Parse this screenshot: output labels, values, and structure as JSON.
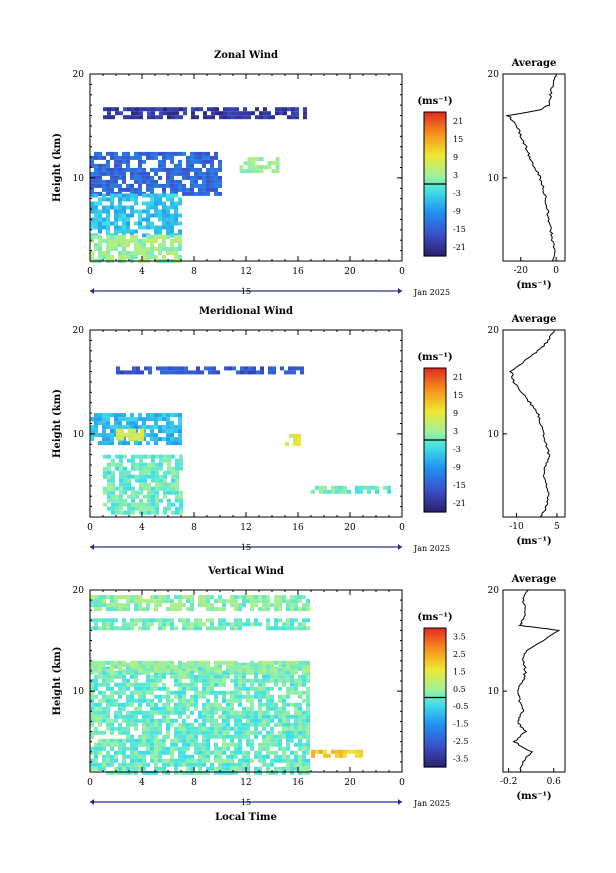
{
  "chart_data": [
    {
      "type": "heatmap",
      "title": "Zonal Wind",
      "ylabel": "Height (km)",
      "xticks": [
        "0",
        "4",
        "8",
        "12",
        "16",
        "20",
        "0"
      ],
      "yticks": [
        "20",
        "10"
      ],
      "date_label": "15",
      "month_label": "Jan 2025",
      "xlim": [
        0,
        24
      ],
      "ylim": [
        2,
        20
      ],
      "colorbar": {
        "unit": "(ms⁻¹)",
        "ticks": [
          "21",
          "15",
          "9",
          "3",
          "-3",
          "-9",
          "-15",
          "-21"
        ],
        "range": [
          -24,
          24
        ]
      },
      "regions": [
        {
          "t0": 1.0,
          "t1": 16.5,
          "h0": 16.0,
          "h1": 16.8,
          "value": -20
        },
        {
          "t0": 0.0,
          "t1": 10.0,
          "h0": 8.5,
          "h1": 12.5,
          "value": -14
        },
        {
          "t0": 0.0,
          "t1": 7.0,
          "h0": 4.5,
          "h1": 8.5,
          "value": -5
        },
        {
          "t0": 0.0,
          "t1": 7.0,
          "h0": 2.0,
          "h1": 4.5,
          "value": 3
        },
        {
          "t0": 11.5,
          "t1": 14.5,
          "h0": 10.5,
          "h1": 12.0,
          "value": 3
        }
      ],
      "profile": {
        "title": "Average",
        "xticks": [
          "-20",
          "0"
        ],
        "xlim": [
          -30,
          5
        ],
        "xlabel": "(ms⁻¹)",
        "yticks": [
          "20",
          "10"
        ],
        "points": [
          [
            -2,
            2
          ],
          [
            -1,
            3
          ],
          [
            -2,
            4
          ],
          [
            -3,
            5
          ],
          [
            -4,
            6
          ],
          [
            -5,
            7
          ],
          [
            -6,
            8
          ],
          [
            -7,
            9
          ],
          [
            -9,
            10
          ],
          [
            -12,
            11
          ],
          [
            -15,
            12
          ],
          [
            -17,
            13
          ],
          [
            -20,
            14
          ],
          [
            -22,
            15
          ],
          [
            -27,
            16
          ],
          [
            -10,
            16.5
          ],
          [
            -4,
            17
          ],
          [
            -3,
            18
          ],
          [
            -2,
            19
          ],
          [
            0,
            20
          ]
        ]
      }
    },
    {
      "type": "heatmap",
      "title": "Meridional Wind",
      "ylabel": "Height (km)",
      "xticks": [
        "0",
        "4",
        "8",
        "12",
        "16",
        "20",
        "0"
      ],
      "yticks": [
        "20",
        "10"
      ],
      "date_label": "15",
      "month_label": "Jan 2025",
      "xlim": [
        0,
        24
      ],
      "ylim": [
        2,
        20
      ],
      "colorbar": {
        "unit": "(ms⁻¹)",
        "ticks": [
          "21",
          "15",
          "9",
          "3",
          "-3",
          "-9",
          "-15",
          "-21"
        ],
        "range": [
          -24,
          24
        ]
      },
      "regions": [
        {
          "t0": 2.0,
          "t1": 16.5,
          "h0": 15.8,
          "h1": 16.5,
          "value": -16
        },
        {
          "t0": 0.0,
          "t1": 7.0,
          "h0": 9.0,
          "h1": 12.0,
          "value": -6
        },
        {
          "t0": 2.0,
          "t1": 4.0,
          "h0": 9.5,
          "h1": 10.5,
          "value": 8
        },
        {
          "t0": 1.0,
          "t1": 7.0,
          "h0": 2.5,
          "h1": 8.0,
          "value": 0
        },
        {
          "t0": 15.0,
          "t1": 16.0,
          "h0": 9.0,
          "h1": 10.0,
          "value": 8
        },
        {
          "t0": 17.0,
          "t1": 23.0,
          "h0": 4.5,
          "h1": 5.0,
          "value": 0
        }
      ],
      "profile": {
        "title": "Average",
        "xticks": [
          "-10",
          "5"
        ],
        "xlim": [
          -15,
          8
        ],
        "xlabel": "(ms⁻¹)",
        "yticks": [
          "20",
          "10"
        ],
        "points": [
          [
            -1,
            2
          ],
          [
            1,
            3
          ],
          [
            2,
            4
          ],
          [
            1,
            5
          ],
          [
            0,
            6
          ],
          [
            1,
            7
          ],
          [
            2,
            8
          ],
          [
            1,
            9
          ],
          [
            0,
            10
          ],
          [
            -1,
            11
          ],
          [
            -2,
            12
          ],
          [
            -5,
            13
          ],
          [
            -8,
            14
          ],
          [
            -11,
            15
          ],
          [
            -12,
            16
          ],
          [
            -7,
            17
          ],
          [
            -2,
            18
          ],
          [
            2,
            19
          ],
          [
            4,
            20
          ]
        ]
      }
    },
    {
      "type": "heatmap",
      "title": "Vertical Wind",
      "ylabel": "Height (km)",
      "xlabel": "Local Time",
      "xticks": [
        "0",
        "4",
        "8",
        "12",
        "16",
        "20",
        "0"
      ],
      "yticks": [
        "20",
        "10"
      ],
      "date_label": "15",
      "month_label": "Jan 2025",
      "xlim": [
        0,
        24
      ],
      "ylim": [
        2,
        20
      ],
      "colorbar": {
        "unit": "(ms⁻¹)",
        "ticks": [
          "3.5",
          "2.5",
          "1.5",
          "0.5",
          "-0.5",
          "-1.5",
          "-2.5",
          "-3.5"
        ],
        "range": [
          -4,
          4
        ]
      },
      "regions": [
        {
          "t0": 0.0,
          "t1": 16.8,
          "h0": 18.0,
          "h1": 19.5,
          "value": 0.3
        },
        {
          "t0": 0.0,
          "t1": 16.8,
          "h0": 16.2,
          "h1": 17.2,
          "value": 0.1
        },
        {
          "t0": 0.0,
          "t1": 16.8,
          "h0": 2.0,
          "h1": 12.8,
          "value": 0.0
        },
        {
          "t0": 0.0,
          "t1": 16.8,
          "h0": 12.0,
          "h1": 13.0,
          "value": 0.4
        },
        {
          "t0": 17.0,
          "t1": 21.0,
          "h0": 3.8,
          "h1": 4.2,
          "value": 2.0
        }
      ],
      "profile": {
        "title": "Average",
        "xticks": [
          "-0.2",
          "0.6"
        ],
        "xlim": [
          -0.3,
          0.8
        ],
        "xlabel": "(ms⁻¹)",
        "yticks": [
          "20",
          "10"
        ],
        "points": [
          [
            0.0,
            2
          ],
          [
            0.05,
            3
          ],
          [
            0.2,
            4
          ],
          [
            -0.1,
            5
          ],
          [
            0.1,
            6
          ],
          [
            -0.05,
            7
          ],
          [
            0.05,
            8
          ],
          [
            0.0,
            9
          ],
          [
            -0.05,
            10
          ],
          [
            0.05,
            11
          ],
          [
            0.1,
            12
          ],
          [
            0.05,
            13
          ],
          [
            0.1,
            14
          ],
          [
            0.7,
            16
          ],
          [
            0.0,
            16.5
          ],
          [
            0.05,
            17
          ],
          [
            0.1,
            18
          ],
          [
            0.05,
            19
          ],
          [
            0.15,
            20
          ]
        ]
      }
    }
  ]
}
